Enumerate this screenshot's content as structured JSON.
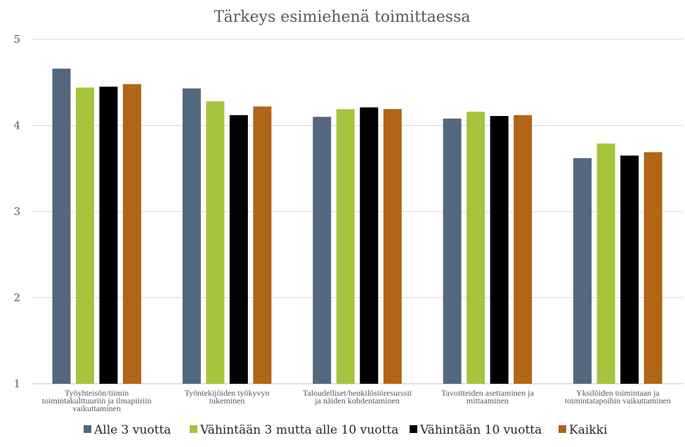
{
  "chart_data": {
    "type": "bar",
    "title": "Tärkeys esimiehenä toimittaessa",
    "xlabel": "",
    "ylabel": "",
    "ylim": [
      1,
      5
    ],
    "yticks": [
      "1",
      "2",
      "3",
      "4",
      "5"
    ],
    "grid": true,
    "legend_position": "bottom",
    "categories": [
      [
        "Työyhteisön/tiimin",
        "toimintakulttuuriin ja ilmapiiriin",
        "vaikuttaminen"
      ],
      [
        "Työntekijöiden työkyvyn",
        "tukeminen"
      ],
      [
        "Taloudelliset/henkilöstöresurssit",
        "ja näiden kohdentaminen"
      ],
      [
        "Tavoitteiden asettaminen ja",
        "mittaaminen"
      ],
      [
        "Yksilöiden toimintaan ja",
        "toimintatapoihin vaikuttaminen"
      ]
    ],
    "series": [
      {
        "name": "Alle 3 vuotta",
        "color": "#53687e",
        "values": [
          4.66,
          4.43,
          4.1,
          4.08,
          3.62
        ]
      },
      {
        "name": "Vähintään 3 mutta alle 10 vuotta",
        "color": "#a5c43c",
        "values": [
          4.44,
          4.28,
          4.19,
          4.16,
          3.79
        ]
      },
      {
        "name": "Vähintään 10 vuotta",
        "color": "#000000",
        "values": [
          4.45,
          4.12,
          4.21,
          4.11,
          3.65
        ]
      },
      {
        "name": "Kaikki",
        "color": "#b06517",
        "values": [
          4.48,
          4.22,
          4.19,
          4.12,
          3.69
        ]
      }
    ]
  }
}
